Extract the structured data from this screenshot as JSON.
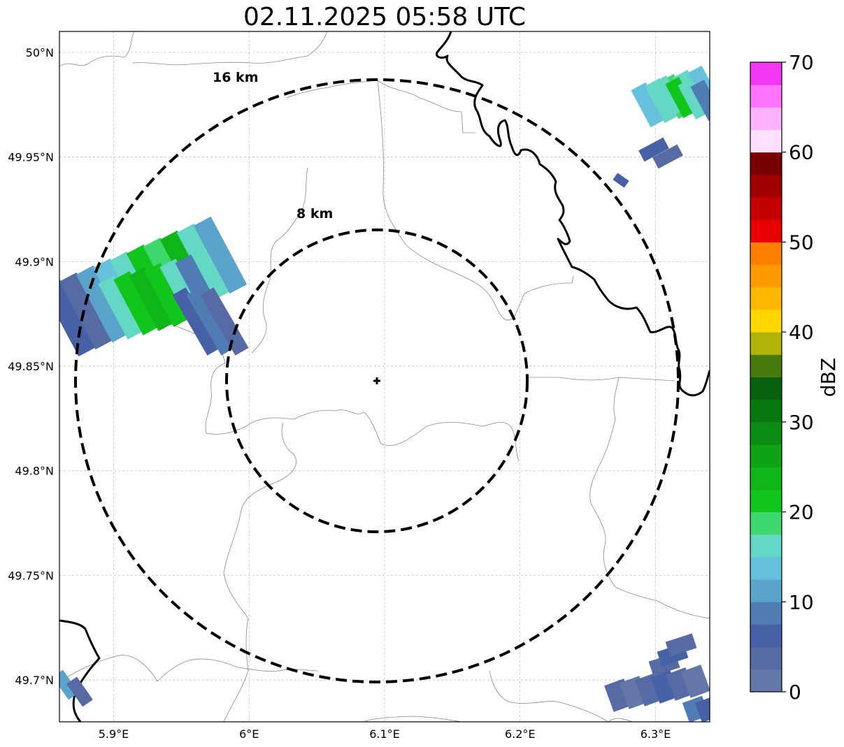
{
  "map": {
    "title": "02.11.2025 05:58 UTC",
    "extent": {
      "lon_min": 5.86,
      "lon_max": 6.34,
      "lat_min": 49.68,
      "lat_max": 50.01
    },
    "x_ticks": [
      {
        "lon": 5.9,
        "label": "5.9°E"
      },
      {
        "lon": 6.0,
        "label": "6°E"
      },
      {
        "lon": 6.1,
        "label": "6.1°E"
      },
      {
        "lon": 6.2,
        "label": "6.2°E"
      },
      {
        "lon": 6.3,
        "label": "6.3°E"
      }
    ],
    "y_ticks": [
      {
        "lat": 50.0,
        "label": "50°N"
      },
      {
        "lat": 49.95,
        "label": "49.95°N"
      },
      {
        "lat": 49.9,
        "label": "49.9°N"
      },
      {
        "lat": 49.85,
        "label": "49.85°N"
      },
      {
        "lat": 49.8,
        "label": "49.8°N"
      },
      {
        "lat": 49.75,
        "label": "49.75°N"
      },
      {
        "lat": 49.7,
        "label": "49.7°N"
      }
    ],
    "gridlines": true,
    "center": {
      "lon": 6.095,
      "lat": 49.843
    },
    "rings": [
      {
        "radius_km": 8,
        "label": "8 km"
      },
      {
        "radius_km": 16,
        "label": "16 km"
      }
    ],
    "colorbar": {
      "label": "dBZ",
      "ticks": [
        0,
        10,
        20,
        30,
        40,
        50,
        60,
        70
      ],
      "bins": [
        {
          "v": 0,
          "color": "#6577a9"
        },
        {
          "v": 2.5,
          "color": "#566aa4"
        },
        {
          "v": 5,
          "color": "#4661a6"
        },
        {
          "v": 7.5,
          "color": "#4f7db3"
        },
        {
          "v": 10,
          "color": "#5aa3ca"
        },
        {
          "v": 12.5,
          "color": "#66c1dd"
        },
        {
          "v": 15,
          "color": "#64d8c5"
        },
        {
          "v": 17.5,
          "color": "#3ed86f"
        },
        {
          "v": 20,
          "color": "#12c51d"
        },
        {
          "v": 22.5,
          "color": "#10b519"
        },
        {
          "v": 25,
          "color": "#0ea314"
        },
        {
          "v": 27.5,
          "color": "#0a8c14"
        },
        {
          "v": 30,
          "color": "#08770f"
        },
        {
          "v": 32.5,
          "color": "#08610e"
        },
        {
          "v": 35,
          "color": "#467a0c"
        },
        {
          "v": 37.5,
          "color": "#b0b406"
        },
        {
          "v": 40,
          "color": "#ffd700"
        },
        {
          "v": 42.5,
          "color": "#ffb700"
        },
        {
          "v": 45,
          "color": "#ff9a00"
        },
        {
          "v": 47.5,
          "color": "#ff7f00"
        },
        {
          "v": 50,
          "color": "#e60000"
        },
        {
          "v": 52.5,
          "color": "#c40000"
        },
        {
          "v": 55,
          "color": "#a00000"
        },
        {
          "v": 57.5,
          "color": "#780000"
        },
        {
          "v": 60,
          "color": "#ffe1ff"
        },
        {
          "v": 62.5,
          "color": "#ffb3ff"
        },
        {
          "v": 65,
          "color": "#ff75ff"
        },
        {
          "v": 67.5,
          "color": "#f236f2"
        }
      ]
    }
  }
}
